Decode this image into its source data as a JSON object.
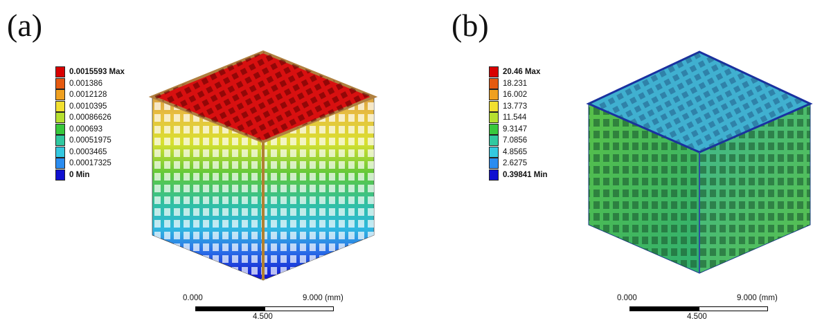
{
  "panels": [
    {
      "id": "a",
      "letter": "(a)",
      "legend": {
        "labels": [
          "0.0015593 Max",
          "0.001386",
          "0.0012128",
          "0.0010395",
          "0.00086626",
          "0.000693",
          "0.00051975",
          "0.0003465",
          "0.00017325",
          "0 Min"
        ],
        "colors": [
          "#d80000",
          "#e55a10",
          "#efa020",
          "#f2e030",
          "#b6e030",
          "#38c83c",
          "#30c8a0",
          "#34c8e0",
          "#2a8cf0",
          "#1010d0"
        ]
      },
      "scalebar": {
        "left": "0.000",
        "mid": "4.500",
        "right": "9.000 (mm)"
      }
    },
    {
      "id": "b",
      "letter": "(b)",
      "legend": {
        "labels": [
          "20.46 Max",
          "18.231",
          "16.002",
          "13.773",
          "11.544",
          "9.3147",
          "7.0856",
          "4.8565",
          "2.6275",
          "0.39841 Min"
        ],
        "colors": [
          "#d80000",
          "#e55a10",
          "#efa020",
          "#f2e030",
          "#b6e030",
          "#38c83c",
          "#30c8a0",
          "#34c8e0",
          "#2a8cf0",
          "#1010d0"
        ]
      },
      "scalebar": {
        "left": "0.000",
        "mid": "4.500",
        "right": "9.000 (mm)"
      }
    }
  ]
}
